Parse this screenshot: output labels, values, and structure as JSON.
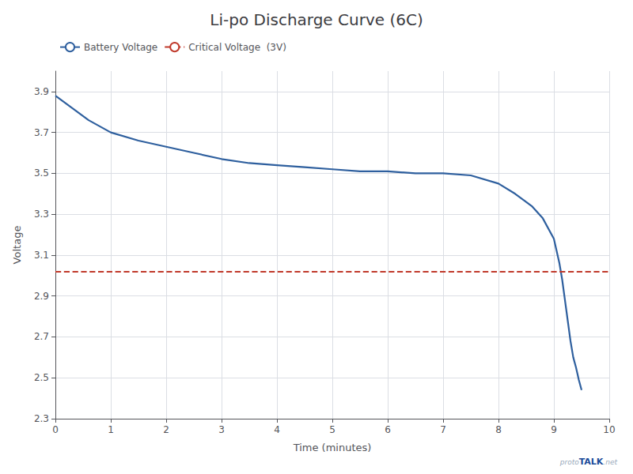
{
  "chart_data": {
    "type": "line",
    "title": "Li-po Discharge Curve (6C)",
    "xlabel": "Time (minutes)",
    "ylabel": "Voltage",
    "x": [
      0,
      0.3,
      0.6,
      1.0,
      1.5,
      2.0,
      2.5,
      3.0,
      3.5,
      4.0,
      4.5,
      5.0,
      5.5,
      6.0,
      6.5,
      7.0,
      7.5,
      8.0,
      8.3,
      8.6,
      8.8,
      9.0,
      9.1,
      9.15,
      9.2,
      9.25,
      9.3,
      9.35,
      9.4,
      9.45,
      9.5
    ],
    "series": [
      {
        "name": "Battery Voltage",
        "color": "#2e5f9e",
        "values": [
          3.88,
          3.82,
          3.76,
          3.7,
          3.66,
          3.63,
          3.6,
          3.57,
          3.55,
          3.54,
          3.53,
          3.52,
          3.51,
          3.51,
          3.5,
          3.5,
          3.49,
          3.45,
          3.4,
          3.34,
          3.28,
          3.18,
          3.06,
          2.98,
          2.88,
          2.78,
          2.68,
          2.6,
          2.55,
          2.49,
          2.44
        ]
      }
    ],
    "hlines": [
      {
        "name": "Critical Voltage  (3V)",
        "value": 3.02,
        "color": "#c0392b",
        "line_style": "dashed"
      }
    ],
    "xlim": [
      0,
      10
    ],
    "ylim": [
      2.3,
      4.0
    ],
    "xticks": [
      0,
      1,
      2,
      3,
      4,
      5,
      6,
      7,
      8,
      9,
      10
    ],
    "yticks": [
      2.3,
      2.5,
      2.7,
      2.9,
      3.1,
      3.3,
      3.5,
      3.7,
      3.9
    ],
    "grid": true,
    "legend": "top left",
    "annotations": [
      "proto",
      "TALK",
      ".net"
    ]
  }
}
